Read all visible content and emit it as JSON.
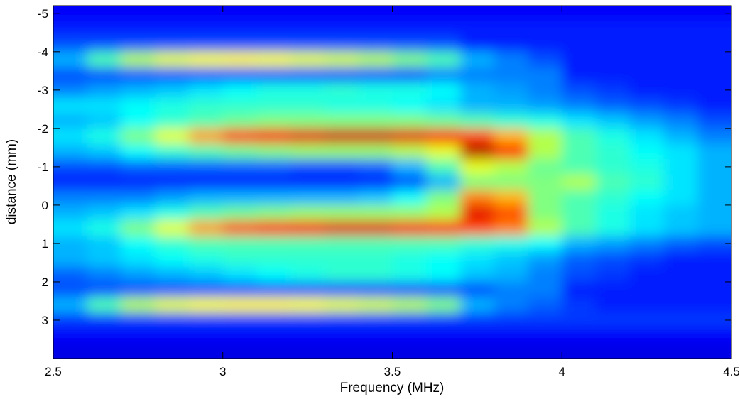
{
  "chart_data": {
    "type": "heatmap",
    "xlabel": "Frequency (MHz)",
    "ylabel": "distance (mm)",
    "colormap": "jet",
    "clim": [
      0,
      1
    ],
    "ydir": "reverse",
    "xlim": [
      2.5,
      4.5
    ],
    "ylim": [
      -5.2,
      4
    ],
    "xticks": [
      2.5,
      3,
      3.5,
      4,
      4.5
    ],
    "yticks": [
      -5,
      -4,
      -3,
      -2,
      -1,
      0,
      1,
      2,
      3
    ],
    "x": [
      2.55,
      2.65,
      2.75,
      2.85,
      2.95,
      3.05,
      3.15,
      3.25,
      3.35,
      3.45,
      3.55,
      3.65,
      3.75,
      3.85,
      3.95,
      4.05,
      4.15,
      4.25,
      4.35,
      4.45
    ],
    "y": [
      -5.0,
      -4.6,
      -4.2,
      -3.8,
      -3.4,
      -3.0,
      -2.6,
      -2.2,
      -1.8,
      -1.4,
      -1.0,
      -0.6,
      -0.2,
      0.2,
      0.6,
      1.0,
      1.4,
      1.8,
      2.2,
      2.6,
      3.0,
      3.4,
      3.8
    ],
    "z": [
      [
        0.12,
        0.12,
        0.12,
        0.12,
        0.12,
        0.12,
        0.12,
        0.12,
        0.12,
        0.12,
        0.12,
        0.12,
        0.12,
        0.12,
        0.12,
        0.12,
        0.12,
        0.12,
        0.12,
        0.12
      ],
      [
        0.15,
        0.15,
        0.15,
        0.15,
        0.15,
        0.15,
        0.15,
        0.15,
        0.15,
        0.15,
        0.15,
        0.15,
        0.15,
        0.15,
        0.15,
        0.15,
        0.15,
        0.15,
        0.15,
        0.15
      ],
      [
        0.2,
        0.2,
        0.2,
        0.2,
        0.2,
        0.2,
        0.2,
        0.2,
        0.2,
        0.2,
        0.2,
        0.2,
        0.15,
        0.15,
        0.15,
        0.15,
        0.15,
        0.15,
        0.15,
        0.15
      ],
      [
        0.3,
        0.45,
        0.55,
        0.6,
        0.62,
        0.63,
        0.62,
        0.6,
        0.58,
        0.55,
        0.5,
        0.45,
        0.3,
        0.25,
        0.2,
        0.15,
        0.15,
        0.15,
        0.15,
        0.15
      ],
      [
        0.2,
        0.2,
        0.2,
        0.2,
        0.2,
        0.2,
        0.2,
        0.2,
        0.2,
        0.2,
        0.2,
        0.25,
        0.25,
        0.25,
        0.25,
        0.15,
        0.15,
        0.15,
        0.15,
        0.15
      ],
      [
        0.25,
        0.28,
        0.3,
        0.32,
        0.35,
        0.38,
        0.4,
        0.4,
        0.42,
        0.4,
        0.4,
        0.38,
        0.3,
        0.28,
        0.25,
        0.2,
        0.18,
        0.15,
        0.15,
        0.15
      ],
      [
        0.35,
        0.35,
        0.38,
        0.4,
        0.42,
        0.42,
        0.42,
        0.42,
        0.4,
        0.4,
        0.38,
        0.35,
        0.3,
        0.3,
        0.28,
        0.25,
        0.22,
        0.2,
        0.18,
        0.15
      ],
      [
        0.3,
        0.32,
        0.38,
        0.42,
        0.45,
        0.48,
        0.5,
        0.5,
        0.5,
        0.5,
        0.5,
        0.48,
        0.45,
        0.42,
        0.4,
        0.35,
        0.32,
        0.28,
        0.25,
        0.2
      ],
      [
        0.35,
        0.4,
        0.5,
        0.6,
        0.72,
        0.82,
        0.88,
        0.9,
        0.92,
        0.92,
        0.9,
        0.88,
        0.8,
        0.7,
        0.55,
        0.45,
        0.4,
        0.35,
        0.3,
        0.25
      ],
      [
        0.3,
        0.32,
        0.38,
        0.42,
        0.45,
        0.48,
        0.5,
        0.52,
        0.52,
        0.52,
        0.55,
        0.6,
        0.95,
        0.85,
        0.55,
        0.45,
        0.42,
        0.38,
        0.35,
        0.3
      ],
      [
        0.2,
        0.2,
        0.22,
        0.22,
        0.22,
        0.22,
        0.22,
        0.2,
        0.2,
        0.22,
        0.3,
        0.45,
        0.6,
        0.55,
        0.48,
        0.45,
        0.42,
        0.4,
        0.35,
        0.3
      ],
      [
        0.15,
        0.15,
        0.15,
        0.15,
        0.15,
        0.15,
        0.15,
        0.15,
        0.15,
        0.15,
        0.2,
        0.3,
        0.5,
        0.5,
        0.5,
        0.55,
        0.45,
        0.42,
        0.35,
        0.3
      ],
      [
        0.25,
        0.25,
        0.25,
        0.28,
        0.3,
        0.3,
        0.3,
        0.3,
        0.3,
        0.32,
        0.38,
        0.5,
        0.75,
        0.7,
        0.5,
        0.45,
        0.42,
        0.38,
        0.35,
        0.3
      ],
      [
        0.3,
        0.32,
        0.35,
        0.4,
        0.45,
        0.48,
        0.5,
        0.52,
        0.52,
        0.52,
        0.52,
        0.55,
        0.9,
        0.8,
        0.5,
        0.45,
        0.4,
        0.35,
        0.32,
        0.3
      ],
      [
        0.35,
        0.4,
        0.5,
        0.6,
        0.72,
        0.8,
        0.85,
        0.88,
        0.9,
        0.9,
        0.88,
        0.85,
        0.8,
        0.75,
        0.55,
        0.45,
        0.4,
        0.35,
        0.32,
        0.3
      ],
      [
        0.3,
        0.32,
        0.38,
        0.42,
        0.45,
        0.45,
        0.45,
        0.45,
        0.45,
        0.45,
        0.45,
        0.45,
        0.42,
        0.4,
        0.38,
        0.3,
        0.28,
        0.25,
        0.22,
        0.2
      ],
      [
        0.3,
        0.32,
        0.35,
        0.38,
        0.4,
        0.42,
        0.42,
        0.42,
        0.42,
        0.42,
        0.4,
        0.38,
        0.35,
        0.32,
        0.28,
        0.22,
        0.2,
        0.18,
        0.15,
        0.15
      ],
      [
        0.22,
        0.25,
        0.28,
        0.3,
        0.32,
        0.35,
        0.38,
        0.4,
        0.42,
        0.42,
        0.4,
        0.38,
        0.32,
        0.3,
        0.25,
        0.2,
        0.18,
        0.15,
        0.15,
        0.15
      ],
      [
        0.2,
        0.2,
        0.2,
        0.2,
        0.2,
        0.2,
        0.2,
        0.2,
        0.2,
        0.2,
        0.2,
        0.2,
        0.2,
        0.25,
        0.25,
        0.15,
        0.15,
        0.15,
        0.15,
        0.15
      ],
      [
        0.3,
        0.45,
        0.55,
        0.6,
        0.62,
        0.63,
        0.63,
        0.62,
        0.6,
        0.58,
        0.55,
        0.5,
        0.3,
        0.25,
        0.22,
        0.18,
        0.15,
        0.15,
        0.15,
        0.15
      ],
      [
        0.18,
        0.18,
        0.18,
        0.18,
        0.18,
        0.18,
        0.18,
        0.18,
        0.18,
        0.18,
        0.18,
        0.18,
        0.18,
        0.18,
        0.18,
        0.18,
        0.18,
        0.18,
        0.18,
        0.18
      ],
      [
        0.12,
        0.12,
        0.12,
        0.12,
        0.12,
        0.12,
        0.12,
        0.12,
        0.12,
        0.12,
        0.12,
        0.12,
        0.12,
        0.12,
        0.12,
        0.12,
        0.12,
        0.12,
        0.12,
        0.12
      ],
      [
        0.1,
        0.1,
        0.1,
        0.1,
        0.1,
        0.1,
        0.1,
        0.1,
        0.1,
        0.1,
        0.1,
        0.1,
        0.1,
        0.1,
        0.1,
        0.1,
        0.1,
        0.1,
        0.1,
        0.1
      ]
    ]
  }
}
